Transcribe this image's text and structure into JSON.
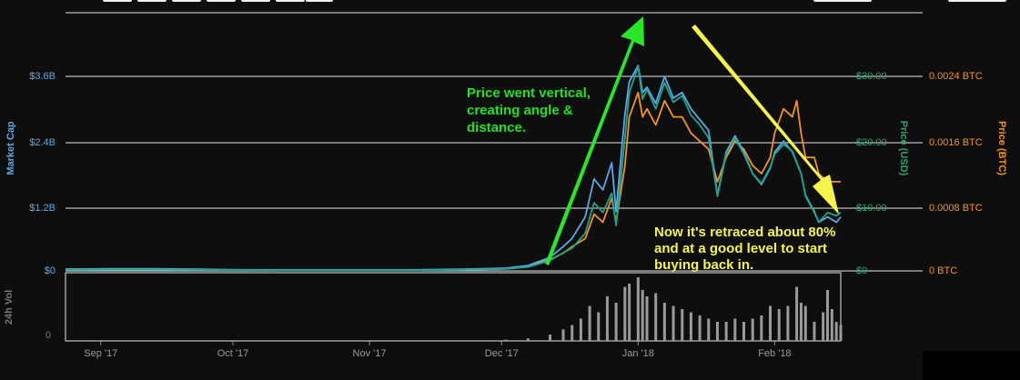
{
  "chart_data": {
    "type": "line",
    "left_axis_title": "Market Cap",
    "right_axis_title_usd": "Price (USD)",
    "right_axis_title_btc": "Price (BTC)",
    "volume_axis_title": "24h Vol",
    "x_ticks": [
      "Sep '17",
      "Oct '17",
      "Nov '17",
      "Dec '17",
      "Jan '18",
      "Feb '18"
    ],
    "x_tick_days": [
      8,
      38,
      69,
      99,
      130,
      161
    ],
    "market_cap_ticks": [
      "$0",
      "$1.2B",
      "$2.4B",
      "$3.6B"
    ],
    "usd_ticks": [
      "$0",
      "$10.00",
      "$20.00",
      "$30.00"
    ],
    "btc_ticks": [
      "0 BTC",
      "0.0008 BTC",
      "0.0016 BTC",
      "0.0024 BTC"
    ],
    "volume_ticks": [
      "0"
    ],
    "usd_ylim": [
      0,
      30
    ],
    "btc_ylim": [
      0,
      0.0024
    ],
    "colors": {
      "market_cap": "#5aa9e6",
      "price_usd": "#1fa38a",
      "price_btc": "#f7931a",
      "volume": "#9a9a9a",
      "usd_axis": "#2fa36b",
      "btc_axis": "#f7931a",
      "cap_axis": "#5aa9e6"
    },
    "series": [
      {
        "name": "Market Cap",
        "unit": "USD",
        "points": [
          [
            0,
            0.03
          ],
          [
            10,
            0.04
          ],
          [
            20,
            0.04
          ],
          [
            30,
            0.03
          ],
          [
            40,
            0.02
          ],
          [
            50,
            0.02
          ],
          [
            60,
            0.02
          ],
          [
            70,
            0.02
          ],
          [
            80,
            0.02
          ],
          [
            90,
            0.03
          ],
          [
            100,
            0.05
          ],
          [
            105,
            0.1
          ],
          [
            110,
            0.25
          ],
          [
            113,
            0.45
          ],
          [
            115,
            0.6
          ],
          [
            118,
            1.0
          ],
          [
            120,
            1.7
          ],
          [
            122,
            1.5
          ],
          [
            124,
            2.0
          ],
          [
            125,
            1.1
          ],
          [
            127,
            2.9
          ],
          [
            128,
            3.5
          ],
          [
            130,
            3.8
          ],
          [
            131,
            3.3
          ],
          [
            132,
            3.4
          ],
          [
            134,
            3.1
          ],
          [
            136,
            3.6
          ],
          [
            138,
            3.2
          ],
          [
            140,
            3.3
          ],
          [
            142,
            3.0
          ],
          [
            144,
            2.8
          ],
          [
            146,
            2.6
          ],
          [
            147,
            2.0
          ],
          [
            148,
            1.4
          ],
          [
            150,
            2.2
          ],
          [
            152,
            2.5
          ],
          [
            154,
            2.2
          ],
          [
            156,
            1.8
          ],
          [
            158,
            1.6
          ],
          [
            160,
            1.9
          ],
          [
            161,
            2.2
          ],
          [
            163,
            2.4
          ],
          [
            165,
            2.2
          ],
          [
            167,
            1.8
          ],
          [
            168,
            1.4
          ],
          [
            170,
            1.1
          ],
          [
            171,
            0.9
          ],
          [
            173,
            1.0
          ],
          [
            175,
            0.9
          ],
          [
            176,
            1.0
          ]
        ]
      },
      {
        "name": "Price (USD)",
        "unit": "USD",
        "points": [
          [
            0,
            0.15
          ],
          [
            10,
            0.2
          ],
          [
            20,
            0.2
          ],
          [
            30,
            0.15
          ],
          [
            40,
            0.12
          ],
          [
            50,
            0.1
          ],
          [
            60,
            0.1
          ],
          [
            70,
            0.1
          ],
          [
            80,
            0.1
          ],
          [
            90,
            0.15
          ],
          [
            100,
            0.3
          ],
          [
            105,
            0.6
          ],
          [
            110,
            1.6
          ],
          [
            113,
            2.8
          ],
          [
            115,
            3.5
          ],
          [
            118,
            5.8
          ],
          [
            120,
            10.5
          ],
          [
            122,
            9.0
          ],
          [
            124,
            12.0
          ],
          [
            125,
            7.0
          ],
          [
            127,
            20.5
          ],
          [
            128,
            27.5
          ],
          [
            130,
            31.5
          ],
          [
            131,
            26.5
          ],
          [
            132,
            28.0
          ],
          [
            134,
            25.0
          ],
          [
            136,
            29.0
          ],
          [
            138,
            26.0
          ],
          [
            140,
            27.0
          ],
          [
            142,
            24.0
          ],
          [
            144,
            22.5
          ],
          [
            146,
            20.5
          ],
          [
            147,
            16.0
          ],
          [
            148,
            11.5
          ],
          [
            150,
            18.0
          ],
          [
            152,
            20.5
          ],
          [
            154,
            18.0
          ],
          [
            156,
            15.0
          ],
          [
            158,
            13.5
          ],
          [
            160,
            16.0
          ],
          [
            161,
            18.0
          ],
          [
            163,
            19.5
          ],
          [
            165,
            18.5
          ],
          [
            167,
            15.0
          ],
          [
            168,
            11.5
          ],
          [
            170,
            9.0
          ],
          [
            171,
            7.5
          ],
          [
            173,
            9.0
          ],
          [
            175,
            8.5
          ],
          [
            176,
            9.0
          ]
        ]
      },
      {
        "name": "Price (BTC)",
        "unit": "BTC",
        "points": [
          [
            0,
            2e-05
          ],
          [
            20,
            2e-05
          ],
          [
            40,
            1e-05
          ],
          [
            60,
            1e-05
          ],
          [
            80,
            1e-05
          ],
          [
            95,
            2e-05
          ],
          [
            100,
            3e-05
          ],
          [
            105,
            6e-05
          ],
          [
            110,
            0.00014
          ],
          [
            113,
            0.00022
          ],
          [
            115,
            0.0003
          ],
          [
            118,
            0.0004
          ],
          [
            120,
            0.0007
          ],
          [
            122,
            0.0006
          ],
          [
            124,
            0.0009
          ],
          [
            125,
            0.0006
          ],
          [
            127,
            0.0013
          ],
          [
            128,
            0.0019
          ],
          [
            130,
            0.0022
          ],
          [
            131,
            0.0019
          ],
          [
            132,
            0.002
          ],
          [
            134,
            0.0018
          ],
          [
            136,
            0.0021
          ],
          [
            138,
            0.0019
          ],
          [
            140,
            0.0019
          ],
          [
            142,
            0.0017
          ],
          [
            144,
            0.0016
          ],
          [
            146,
            0.0015
          ],
          [
            147,
            0.0013
          ],
          [
            148,
            0.0011
          ],
          [
            150,
            0.0014
          ],
          [
            152,
            0.0016
          ],
          [
            154,
            0.0015
          ],
          [
            156,
            0.0013
          ],
          [
            158,
            0.0012
          ],
          [
            160,
            0.0014
          ],
          [
            161,
            0.0017
          ],
          [
            163,
            0.002
          ],
          [
            165,
            0.0019
          ],
          [
            166,
            0.0021
          ],
          [
            167,
            0.0017
          ],
          [
            168,
            0.0014
          ],
          [
            170,
            0.0014
          ],
          [
            171,
            0.0012
          ],
          [
            173,
            0.0011
          ],
          [
            175,
            0.0011
          ],
          [
            176,
            0.0011
          ]
        ]
      },
      {
        "name": "24h Vol",
        "type": "bar",
        "points": [
          [
            100,
            0.02
          ],
          [
            105,
            0.04
          ],
          [
            110,
            0.1
          ],
          [
            113,
            0.18
          ],
          [
            115,
            0.25
          ],
          [
            117,
            0.35
          ],
          [
            119,
            0.55
          ],
          [
            121,
            0.45
          ],
          [
            123,
            0.7
          ],
          [
            125,
            0.6
          ],
          [
            127,
            0.85
          ],
          [
            128,
            0.9
          ],
          [
            130,
            1.0
          ],
          [
            131,
            0.8
          ],
          [
            132,
            0.7
          ],
          [
            134,
            0.75
          ],
          [
            136,
            0.6
          ],
          [
            138,
            0.55
          ],
          [
            140,
            0.5
          ],
          [
            142,
            0.45
          ],
          [
            144,
            0.4
          ],
          [
            146,
            0.35
          ],
          [
            148,
            0.3
          ],
          [
            150,
            0.3
          ],
          [
            152,
            0.35
          ],
          [
            154,
            0.3
          ],
          [
            156,
            0.35
          ],
          [
            158,
            0.4
          ],
          [
            160,
            0.55
          ],
          [
            162,
            0.5
          ],
          [
            164,
            0.55
          ],
          [
            166,
            0.85
          ],
          [
            167,
            0.6
          ],
          [
            168,
            0.55
          ],
          [
            170,
            0.3
          ],
          [
            172,
            0.45
          ],
          [
            173,
            0.8
          ],
          [
            174,
            0.5
          ],
          [
            175,
            0.3
          ],
          [
            176,
            0.25
          ]
        ]
      }
    ],
    "annotations": [
      {
        "text": [
          "Price went vertical,",
          "creating angle &",
          "distance."
        ],
        "color": "#22e022"
      },
      {
        "text": [
          "Now it's retraced about 80%",
          "and at a good level to start",
          "buying back in."
        ],
        "color": "#f5f54a"
      }
    ]
  }
}
